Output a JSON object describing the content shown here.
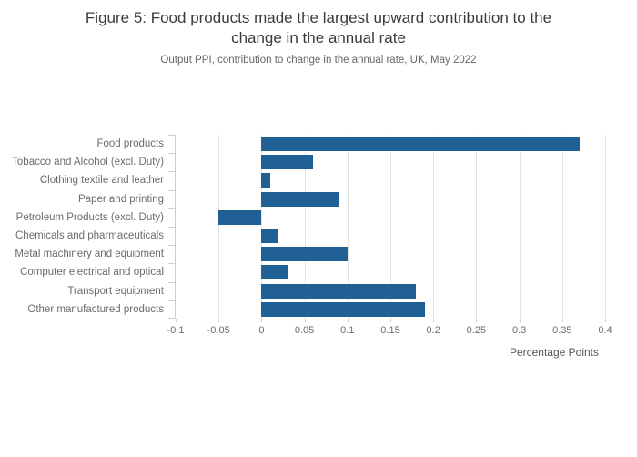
{
  "header": {
    "title": "Figure 5: Food products made the largest upward contribution to the change in the annual rate",
    "subtitle": "Output PPI, contribution to change in the annual rate, UK, May 2022"
  },
  "chart_data": {
    "type": "bar",
    "orientation": "horizontal",
    "title": "Figure 5: Food products made the largest upward contribution to the change in the annual rate",
    "subtitle": "Output PPI, contribution to change in the annual rate, UK, May 2022",
    "categories": [
      "Food products",
      "Tobacco and Alcohol (excl. Duty)",
      "Clothing textile and leather",
      "Paper and printing",
      "Petroleum Products (excl. Duty)",
      "Chemicals and pharmaceuticals",
      "Metal machinery and equipment",
      "Computer electrical and optical",
      "Transport equipment",
      "Other manufactured products"
    ],
    "values": [
      0.37,
      0.06,
      0.01,
      0.09,
      -0.05,
      0.02,
      0.1,
      0.03,
      0.18,
      0.19
    ],
    "xlabel": "Percentage Points",
    "xlim": [
      -0.1,
      0.4
    ],
    "xticks": [
      -0.1,
      -0.05,
      0,
      0.05,
      0.1,
      0.15,
      0.2,
      0.25,
      0.3,
      0.35,
      0.4
    ],
    "xtick_labels": [
      "-0.1",
      "-0.05",
      "0",
      "0.05",
      "0.1",
      "0.15",
      "0.2",
      "0.25",
      "0.3",
      "0.35",
      "0.4"
    ],
    "grid": true,
    "legend": "none",
    "colors": {
      "bar": "#206095",
      "gridline": "#e4e4e4",
      "axis": "#c2cee3",
      "title_text": "#3b3b3b",
      "subtitle_text": "#666666",
      "label_text": "#6b6b6b",
      "axis_title_text": "#555555"
    }
  }
}
